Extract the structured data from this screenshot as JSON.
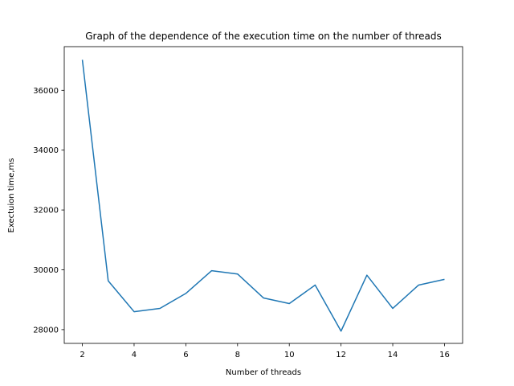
{
  "chart_data": {
    "type": "line",
    "title": "Graph of the dependence of the execution time on the number of threads",
    "xlabel": "Number of threads",
    "ylabel": "Exectuion time,ms",
    "xlim": [
      1.3,
      16.7
    ],
    "ylim": [
      27540,
      37460
    ],
    "xticks": [
      2,
      4,
      6,
      8,
      10,
      12,
      14,
      16
    ],
    "yticks": [
      28000,
      30000,
      32000,
      34000,
      36000
    ],
    "grid": false,
    "legend": "none",
    "series": [
      {
        "color": "#1f77b4",
        "x": [
          2,
          3,
          4,
          5,
          6,
          7,
          8,
          9,
          10,
          11,
          12,
          13,
          14,
          15,
          16
        ],
        "y": [
          37020,
          29630,
          28600,
          28710,
          29210,
          29970,
          29860,
          29060,
          28870,
          29490,
          27950,
          29820,
          28710,
          29490,
          29680
        ]
      }
    ]
  }
}
